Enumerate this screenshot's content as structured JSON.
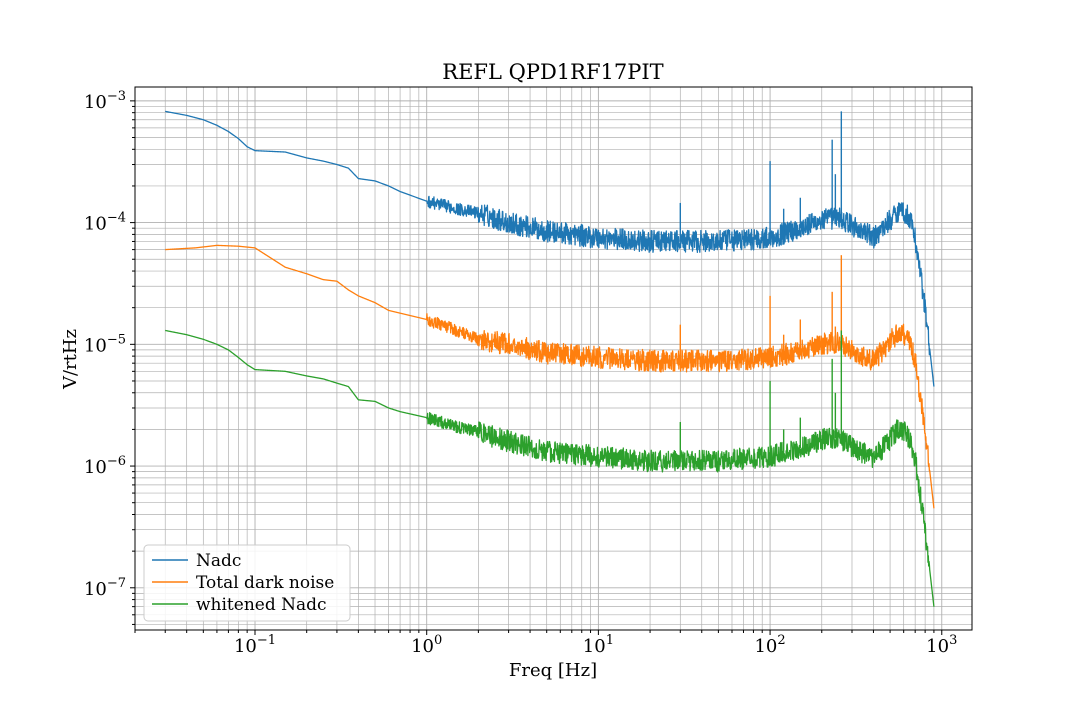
{
  "chart_data": {
    "type": "line",
    "title": "REFL QPD1RF17PIT",
    "xlabel": "Freq [Hz]",
    "ylabel": "V/rtHz",
    "xscale": "log",
    "yscale": "log",
    "xlim": [
      0.02,
      1500
    ],
    "ylim": [
      4.5e-08,
      0.0013
    ],
    "x_ticks": [
      {
        "value": 0.1,
        "base": "10",
        "exp": "−1"
      },
      {
        "value": 1,
        "base": "10",
        "exp": "0"
      },
      {
        "value": 10,
        "base": "10",
        "exp": "1"
      },
      {
        "value": 100,
        "base": "10",
        "exp": "2"
      },
      {
        "value": 1000,
        "base": "10",
        "exp": "3"
      }
    ],
    "y_ticks": [
      {
        "value": 1e-07,
        "base": "10",
        "exp": "−7"
      },
      {
        "value": 1e-06,
        "base": "10",
        "exp": "−6"
      },
      {
        "value": 1e-05,
        "base": "10",
        "exp": "−5"
      },
      {
        "value": 0.0001,
        "base": "10",
        "exp": "−4"
      },
      {
        "value": 0.001,
        "base": "10",
        "exp": "−3"
      }
    ],
    "grid": true,
    "grid_minor": true,
    "legend_position": "lower-left",
    "series": [
      {
        "name": "Nadc",
        "color": "#1f77b4",
        "points": [
          [
            0.03,
            0.00082
          ],
          [
            0.04,
            0.00076
          ],
          [
            0.05,
            0.0007
          ],
          [
            0.06,
            0.00063
          ],
          [
            0.07,
            0.00056
          ],
          [
            0.08,
            0.00049
          ],
          [
            0.09,
            0.00042
          ],
          [
            0.1,
            0.00039
          ],
          [
            0.15,
            0.00038
          ],
          [
            0.2,
            0.00034
          ],
          [
            0.25,
            0.00032
          ],
          [
            0.3,
            0.0003
          ],
          [
            0.35,
            0.00028
          ],
          [
            0.4,
            0.00023
          ],
          [
            0.5,
            0.00022
          ],
          [
            0.6,
            0.0002
          ],
          [
            0.7,
            0.00018
          ],
          [
            1.0,
            0.00015
          ],
          [
            1.5,
            0.00013
          ],
          [
            2.0,
            0.00012
          ],
          [
            3.0,
            0.0001
          ],
          [
            5.0,
            8.5e-05
          ],
          [
            10,
            7.5e-05
          ],
          [
            20,
            7e-05
          ],
          [
            30,
            7e-05
          ],
          [
            50,
            7e-05
          ],
          [
            100,
            7.5e-05
          ],
          [
            150,
            9e-05
          ],
          [
            200,
            0.000105
          ],
          [
            250,
            0.00011
          ],
          [
            300,
            9.5e-05
          ],
          [
            400,
            7.5e-05
          ],
          [
            500,
            0.000105
          ],
          [
            570,
            0.00013
          ],
          [
            650,
            0.00011
          ],
          [
            700,
            7.5e-05
          ],
          [
            800,
            2e-05
          ],
          [
            900,
            4.5e-06
          ]
        ],
        "peaks": [
          [
            30,
            0.000145
          ],
          [
            100,
            0.00032
          ],
          [
            120,
            0.00013
          ],
          [
            150,
            0.00016
          ],
          [
            230,
            0.00048
          ],
          [
            240,
            0.00025
          ],
          [
            260,
            0.00082
          ]
        ]
      },
      {
        "name": "Total dark noise",
        "color": "#ff7f0e",
        "points": [
          [
            0.03,
            6e-05
          ],
          [
            0.045,
            6.2e-05
          ],
          [
            0.06,
            6.5e-05
          ],
          [
            0.08,
            6.4e-05
          ],
          [
            0.1,
            6.2e-05
          ],
          [
            0.15,
            4.3e-05
          ],
          [
            0.2,
            3.8e-05
          ],
          [
            0.25,
            3.4e-05
          ],
          [
            0.3,
            3.3e-05
          ],
          [
            0.35,
            2.8e-05
          ],
          [
            0.4,
            2.5e-05
          ],
          [
            0.5,
            2.2e-05
          ],
          [
            0.6,
            1.9e-05
          ],
          [
            1.0,
            1.6e-05
          ],
          [
            1.5,
            1.3e-05
          ],
          [
            2.0,
            1.1e-05
          ],
          [
            3.0,
            1e-05
          ],
          [
            5.0,
            8.5e-06
          ],
          [
            10,
            7.8e-06
          ],
          [
            20,
            7.3e-06
          ],
          [
            50,
            7.3e-06
          ],
          [
            100,
            7.8e-06
          ],
          [
            150,
            8.8e-06
          ],
          [
            200,
            1e-05
          ],
          [
            250,
            1.05e-05
          ],
          [
            300,
            9e-06
          ],
          [
            400,
            7.3e-06
          ],
          [
            500,
            1.05e-05
          ],
          [
            570,
            1.3e-05
          ],
          [
            650,
            1.05e-05
          ],
          [
            700,
            7.3e-06
          ],
          [
            800,
            2e-06
          ],
          [
            900,
            4.5e-07
          ]
        ],
        "peaks": [
          [
            30,
            1.45e-05
          ],
          [
            100,
            2.5e-05
          ],
          [
            120,
            1.2e-05
          ],
          [
            150,
            1.6e-05
          ],
          [
            230,
            2.7e-05
          ],
          [
            240,
            1.4e-05
          ],
          [
            260,
            5.4e-05
          ]
        ]
      },
      {
        "name": "whitened Nadc",
        "color": "#2ca02c",
        "points": [
          [
            0.03,
            1.3e-05
          ],
          [
            0.04,
            1.2e-05
          ],
          [
            0.05,
            1.1e-05
          ],
          [
            0.06,
            1e-05
          ],
          [
            0.07,
            9e-06
          ],
          [
            0.08,
            7.8e-06
          ],
          [
            0.09,
            6.8e-06
          ],
          [
            0.1,
            6.2e-06
          ],
          [
            0.15,
            6e-06
          ],
          [
            0.2,
            5.5e-06
          ],
          [
            0.25,
            5.2e-06
          ],
          [
            0.3,
            4.8e-06
          ],
          [
            0.35,
            4.5e-06
          ],
          [
            0.4,
            3.5e-06
          ],
          [
            0.5,
            3.4e-06
          ],
          [
            0.6,
            3e-06
          ],
          [
            0.7,
            2.8e-06
          ],
          [
            1.0,
            2.5e-06
          ],
          [
            1.5,
            2.1e-06
          ],
          [
            2.0,
            1.9e-06
          ],
          [
            3.0,
            1.6e-06
          ],
          [
            5.0,
            1.3e-06
          ],
          [
            10,
            1.2e-06
          ],
          [
            20,
            1.1e-06
          ],
          [
            50,
            1.1e-06
          ],
          [
            100,
            1.2e-06
          ],
          [
            150,
            1.4e-06
          ],
          [
            200,
            1.65e-06
          ],
          [
            250,
            1.7e-06
          ],
          [
            300,
            1.45e-06
          ],
          [
            400,
            1.15e-06
          ],
          [
            500,
            1.65e-06
          ],
          [
            570,
            2.1e-06
          ],
          [
            650,
            1.7e-06
          ],
          [
            700,
            1.15e-06
          ],
          [
            800,
            3e-07
          ],
          [
            900,
            7e-08
          ]
        ],
        "peaks": [
          [
            30,
            2.3e-06
          ],
          [
            100,
            5e-06
          ],
          [
            120,
            2e-06
          ],
          [
            150,
            2.5e-06
          ],
          [
            230,
            7.6e-06
          ],
          [
            240,
            4e-06
          ],
          [
            260,
            1.3e-05
          ]
        ]
      }
    ]
  }
}
